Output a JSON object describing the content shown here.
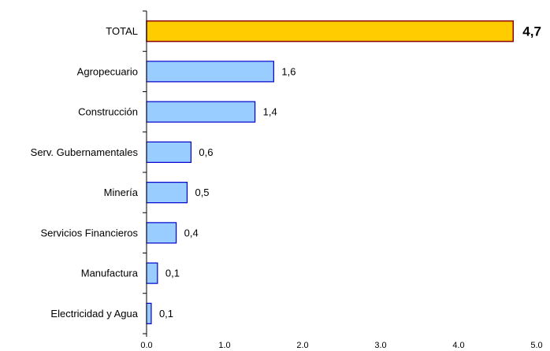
{
  "chart_data": {
    "type": "bar",
    "orientation": "horizontal",
    "title": "",
    "xlabel": "",
    "ylabel": "",
    "categories": [
      "TOTAL",
      "Agropecuario",
      "Construcción",
      "Serv. Gubernamentales",
      "Minería",
      "Servicios Financieros",
      "Manufactura",
      "Electricidad y Agua"
    ],
    "values": [
      4.7,
      1.63,
      1.39,
      0.57,
      0.52,
      0.38,
      0.14,
      0.06
    ],
    "data_labels": [
      "4,7",
      "1,6",
      "1,4",
      "0,6",
      "0,5",
      "0,4",
      "0,1",
      "0,1"
    ],
    "xlim": [
      0,
      5
    ],
    "x_ticks": [
      0,
      1,
      2,
      3,
      4,
      5
    ],
    "x_tick_labels": [
      "0.0",
      "1.0",
      "2.0",
      "3.0",
      "4.0",
      "5.0"
    ],
    "grid": false,
    "legend": "none",
    "colors": {
      "highlight_fill": "#FFCC00",
      "highlight_stroke": "#8B0000",
      "bar_fill": "#99CCFF",
      "bar_stroke": "#0000CC"
    }
  }
}
